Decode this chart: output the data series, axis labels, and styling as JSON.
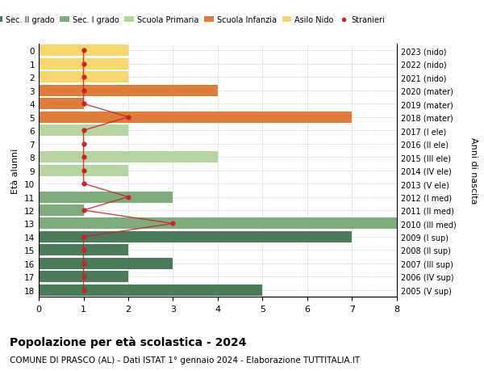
{
  "ages": [
    18,
    17,
    16,
    15,
    14,
    13,
    12,
    11,
    10,
    9,
    8,
    7,
    6,
    5,
    4,
    3,
    2,
    1,
    0
  ],
  "years": [
    "2005 (V sup)",
    "2006 (IV sup)",
    "2007 (III sup)",
    "2008 (II sup)",
    "2009 (I sup)",
    "2010 (III med)",
    "2011 (II med)",
    "2012 (I med)",
    "2013 (V ele)",
    "2014 (IV ele)",
    "2015 (III ele)",
    "2016 (II ele)",
    "2017 (I ele)",
    "2018 (mater)",
    "2019 (mater)",
    "2020 (mater)",
    "2021 (nido)",
    "2022 (nido)",
    "2023 (nido)"
  ],
  "bar_values": [
    5,
    2,
    3,
    2,
    7,
    8,
    1,
    3,
    0,
    2,
    4,
    0,
    2,
    7,
    1,
    4,
    2,
    2,
    2
  ],
  "bar_colors": [
    "#4a7c59",
    "#4a7c59",
    "#4a7c59",
    "#4a7c59",
    "#4a7c59",
    "#7dac7d",
    "#7dac7d",
    "#7dac7d",
    "#b8d4a0",
    "#b8d4a0",
    "#b8d4a0",
    "#b8d4a0",
    "#b8d4a0",
    "#e07c3a",
    "#e07c3a",
    "#e07c3a",
    "#f5d76e",
    "#f5d76e",
    "#f5d76e"
  ],
  "stranieri_x": [
    1,
    1,
    1,
    1,
    1,
    3,
    1,
    2,
    1,
    1,
    1,
    1,
    1,
    2,
    1,
    1,
    1,
    1,
    1
  ],
  "legend_labels": [
    "Sec. II grado",
    "Sec. I grado",
    "Scuola Primaria",
    "Scuola Infanzia",
    "Asilo Nido",
    "Stranieri"
  ],
  "legend_colors": [
    "#4a7c59",
    "#7dac7d",
    "#b8d4a0",
    "#e07c3a",
    "#f5d76e",
    "#cc2222"
  ],
  "title": "Popolazione per età scolastica - 2024",
  "subtitle": "COMUNE DI PRASCO (AL) - Dati ISTAT 1° gennaio 2024 - Elaborazione TUTTITALIA.IT",
  "ylabel_left": "Età alunni",
  "ylabel_right": "Anni di nascita",
  "xlim": [
    0,
    8
  ],
  "xticks": [
    0,
    1,
    2,
    3,
    4,
    5,
    6,
    7,
    8
  ],
  "stranieri_color": "#cc2222",
  "background_color": "#ffffff",
  "grid_color": "#d0d0d0"
}
